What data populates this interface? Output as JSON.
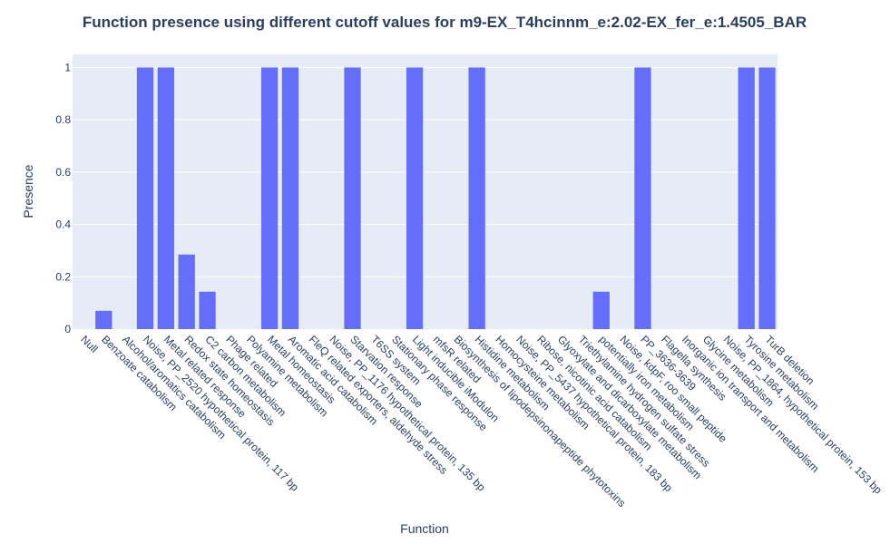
{
  "chart_data": {
    "type": "bar",
    "title": "Function presence using different cutoff values for m9-EX_T4hcinnm_e:2.02-EX_fer_e:1.4505_BAR",
    "xlabel": "Function",
    "ylabel": "Presence",
    "ylim": [
      0,
      1.05
    ],
    "yticks": [
      0,
      0.2,
      0.4,
      0.6,
      0.8,
      1
    ],
    "ytick_labels": [
      "0",
      "0.2",
      "0.4",
      "0.6",
      "0.8",
      "1"
    ],
    "grid": true,
    "legend": "none",
    "bar_color": "#636efa",
    "plot_bg": "#e5ecf6",
    "categories": [
      "Null",
      "Benzoate catabolism",
      "Alcohol/aromatics catabolism",
      "Noise, PP_2520 hypothetical protein, 117 bp",
      "Metal related response",
      "Redox state homeostasis",
      "C2 carbon metabolism",
      "Phage related",
      "Polyamine metabolism",
      "Metal homeostasis",
      "Aromatic acid catabolism",
      "FleQ related exporters, aldehyde stress",
      "Noise, PP_1176 hypothetical protein, 135 bp",
      "Starvation response",
      "T6SS system",
      "Stationary phase response",
      "Light inducible iModulon",
      "mfsR related",
      "Biosynthesis of lipodepsinonapeptide phytotoxins",
      "Histidine metabolism",
      "Homocysteine metabolism",
      "Noise, PP_5437 hypothetical protein, 183 bp",
      "Ribose, nicotinic acid catabolism",
      "Glyoxylate and dicarboxylate metabolism",
      "Triethylamine hydrogen sulfate stress",
      "potentially iron metabolism",
      "Noise, kdpF, roo small peptide",
      "PP_3636-3639",
      "Flagella synthesis",
      "Inorganic ion transport and metabolism",
      "Glycine metabolism",
      "Noise, PP_1864, hypothetical protein, 153 bp",
      "Tyrosine metabolism",
      "TurB deletion"
    ],
    "values": [
      0,
      0.07,
      0,
      1,
      1,
      0.285,
      0.143,
      0,
      0,
      1,
      1,
      0,
      0,
      1,
      0,
      0,
      1,
      0,
      0,
      1,
      0,
      0,
      0,
      0,
      0,
      0.143,
      0,
      1,
      0,
      0,
      0,
      0,
      1,
      1
    ]
  }
}
